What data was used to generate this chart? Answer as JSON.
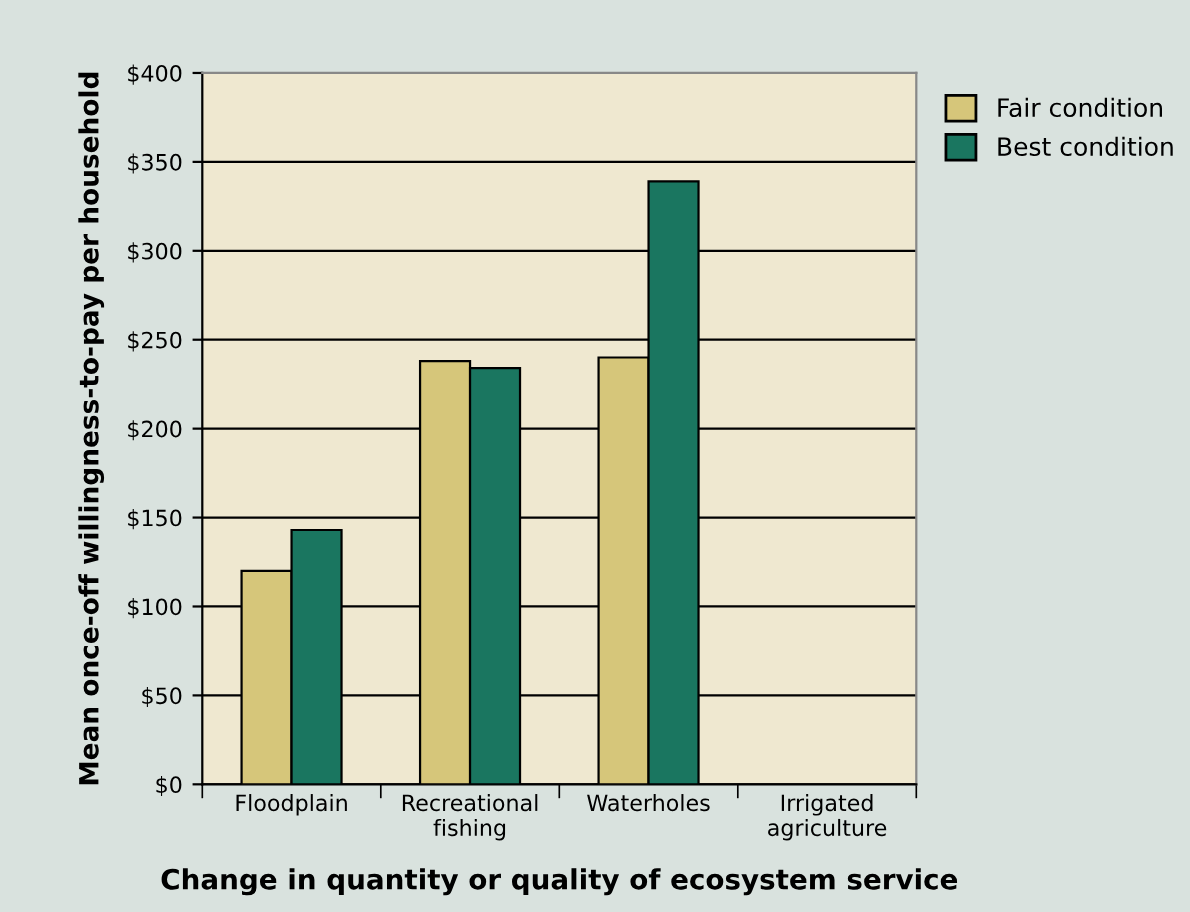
{
  "chart_data": {
    "type": "bar",
    "xlabel": "Change in quantity or quality of ecosystem service",
    "ylabel": "Mean once-off willingness-to-pay per household",
    "categories": [
      "Floodplain",
      "Recreational\nfishing",
      "Waterholes",
      "Irrigated\nagriculture"
    ],
    "series": [
      {
        "name": "Fair condition",
        "color": "#d6c67a",
        "values": [
          120,
          238,
          240,
          null
        ]
      },
      {
        "name": "Best condition",
        "color": "#1a7660",
        "values": [
          143,
          234,
          339,
          null
        ]
      }
    ],
    "ylim": [
      0,
      400
    ],
    "yticks": [
      {
        "value": 0,
        "label": "$0"
      },
      {
        "value": 50,
        "label": "$50"
      },
      {
        "value": 100,
        "label": "$100"
      },
      {
        "value": 150,
        "label": "$150"
      },
      {
        "value": 200,
        "label": "$200"
      },
      {
        "value": 250,
        "label": "$250"
      },
      {
        "value": 300,
        "label": "$300"
      },
      {
        "value": 350,
        "label": "$350"
      },
      {
        "value": 400,
        "label": "$400"
      }
    ],
    "grid": "y",
    "legend": "top right"
  }
}
